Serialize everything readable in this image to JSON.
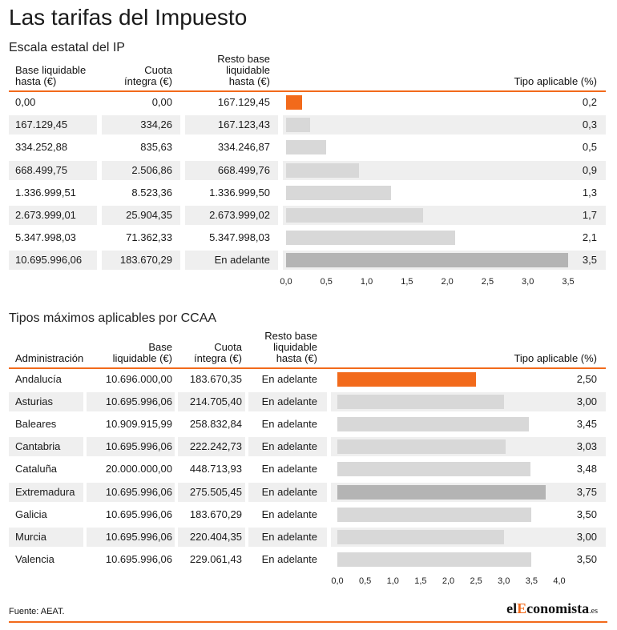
{
  "title": "Las tarifas del Impuesto",
  "source": "Fuente: AEAT.",
  "logo": {
    "pre": "el",
    "accent": "E",
    "post": "conomista",
    "suffix": ".es"
  },
  "colors": {
    "accent": "#f26a1b",
    "bar_light": "#d8d8d8",
    "bar_dark": "#b4b4b4",
    "stripe": "#efefef"
  },
  "chart_data": [
    {
      "type": "bar",
      "subtitle": "Escala estatal del IP",
      "headers": {
        "base": [
          "Base liquidable",
          "hasta (€)"
        ],
        "cuota": [
          "Cuota",
          "íntegra (€)"
        ],
        "resto": [
          "Resto base",
          "liquidable",
          "hasta (€)"
        ],
        "tipo": "Tipo aplicable (%)"
      },
      "rows": [
        {
          "base": "0,00",
          "cuota": "0,00",
          "resto": "167.129,45",
          "tipo": "0,2",
          "value": 0.2
        },
        {
          "base": "167.129,45",
          "cuota": "334,26",
          "resto": "167.123,43",
          "tipo": "0,3",
          "value": 0.3
        },
        {
          "base": "334.252,88",
          "cuota": "835,63",
          "resto": "334.246,87",
          "tipo": "0,5",
          "value": 0.5
        },
        {
          "base": "668.499,75",
          "cuota": "2.506,86",
          "resto": "668.499,76",
          "tipo": "0,9",
          "value": 0.9
        },
        {
          "base": "1.336.999,51",
          "cuota": "8.523,36",
          "resto": "1.336.999,50",
          "tipo": "1,3",
          "value": 1.3
        },
        {
          "base": "2.673.999,01",
          "cuota": "25.904,35",
          "resto": "2.673.999,02",
          "tipo": "1,7",
          "value": 1.7
        },
        {
          "base": "5.347.998,03",
          "cuota": "71.362,33",
          "resto": "5.347.998,03",
          "tipo": "2,1",
          "value": 2.1
        },
        {
          "base": "10.695.996,06",
          "cuota": "183.670,29",
          "resto": "En adelante",
          "tipo": "3,5",
          "value": 3.5
        }
      ],
      "highlight_first": true,
      "highlight_dark_last": true,
      "xlim": [
        0,
        3.5
      ],
      "ticks": [
        "0,0",
        "0,5",
        "1,0",
        "1,5",
        "2,0",
        "2,5",
        "3,0",
        "3,5"
      ]
    },
    {
      "type": "bar",
      "subtitle": "Tipos máximos aplicables por CCAA",
      "headers": {
        "admin": "Administración",
        "base": [
          "Base",
          "liquidable (€)"
        ],
        "cuota": [
          "Cuota",
          "íntegra (€)"
        ],
        "resto": [
          "Resto base",
          "liquidable",
          "hasta (€)"
        ],
        "tipo": "Tipo aplicable (%)"
      },
      "rows": [
        {
          "admin": "Andalucía",
          "base": "10.696.000,00",
          "cuota": "183.670,35",
          "resto": "En adelante",
          "tipo": "2,50",
          "value": 2.5
        },
        {
          "admin": "Asturias",
          "base": "10.695.996,06",
          "cuota": "214.705,40",
          "resto": "En adelante",
          "tipo": "3,00",
          "value": 3.0
        },
        {
          "admin": "Baleares",
          "base": "10.909.915,99",
          "cuota": "258.832,84",
          "resto": "En adelante",
          "tipo": "3,45",
          "value": 3.45
        },
        {
          "admin": "Cantabria",
          "base": "10.695.996,06",
          "cuota": "222.242,73",
          "resto": "En adelante",
          "tipo": "3,03",
          "value": 3.03
        },
        {
          "admin": "Cataluña",
          "base": "20.000.000,00",
          "cuota": "448.713,93",
          "resto": "En adelante",
          "tipo": "3,48",
          "value": 3.48
        },
        {
          "admin": "Extremadura",
          "base": "10.695.996,06",
          "cuota": "275.505,45",
          "resto": "En adelante",
          "tipo": "3,75",
          "value": 3.75
        },
        {
          "admin": "Galicia",
          "base": "10.695.996,06",
          "cuota": "183.670,29",
          "resto": "En adelante",
          "tipo": "3,50",
          "value": 3.5
        },
        {
          "admin": "Murcia",
          "base": "10.695.996,06",
          "cuota": "220.404,35",
          "resto": "En adelante",
          "tipo": "3,00",
          "value": 3.0
        },
        {
          "admin": "Valencia",
          "base": "10.695.996,06",
          "cuota": "229.061,43",
          "resto": "En adelante",
          "tipo": "3,50",
          "value": 3.5
        }
      ],
      "highlight_first": true,
      "highlight_dark_max": true,
      "xlim": [
        0,
        4.0
      ],
      "ticks": [
        "0,0",
        "0,5",
        "1,0",
        "1,5",
        "2,0",
        "2,5",
        "3,0",
        "3,5",
        "4,0"
      ]
    }
  ]
}
